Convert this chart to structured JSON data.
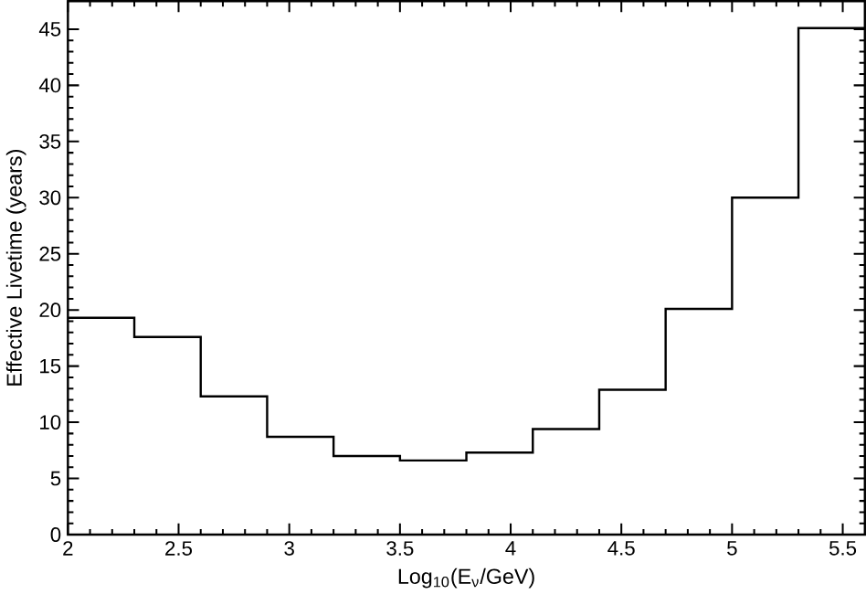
{
  "chart_data": {
    "type": "histogram",
    "xlabel": "Log$_{10}$(E$_{ν}$/GeV)",
    "ylabel": "Effective Livetime (years)",
    "bins": [
      2.0,
      2.3,
      2.6,
      2.9,
      3.2,
      3.5,
      3.8,
      4.1,
      4.4,
      4.7,
      5.0,
      5.3,
      5.6
    ],
    "values": [
      19.3,
      17.6,
      12.3,
      8.7,
      7.0,
      6.6,
      7.3,
      9.4,
      12.9,
      20.1,
      30.0,
      45.1
    ],
    "color": "#000000",
    "xlim": [
      2,
      5.6
    ],
    "ylim": [
      0,
      47.5
    ],
    "xticks": [
      2,
      2.5,
      3,
      3.5,
      4,
      4.5,
      5,
      5.5
    ],
    "yticks": [
      0,
      5,
      10,
      15,
      20,
      25,
      30,
      35,
      40,
      45
    ],
    "grid": false
  }
}
